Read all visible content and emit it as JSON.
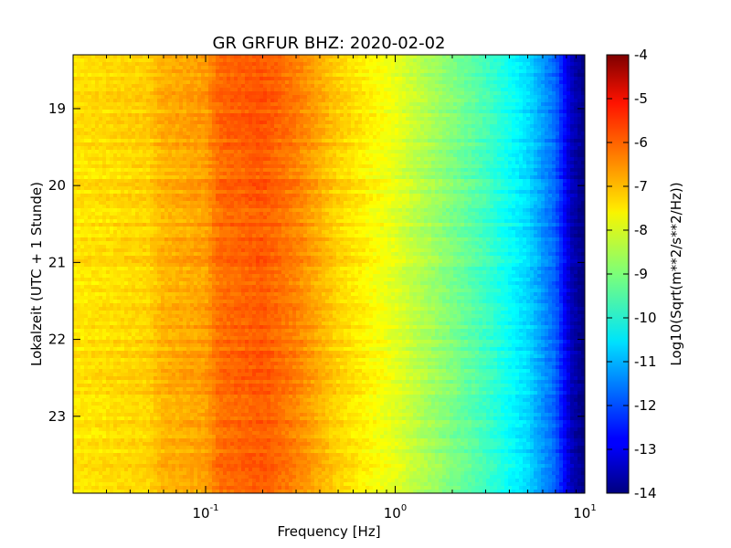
{
  "chart_data": {
    "type": "heatmap",
    "title": "GR GRFUR BHZ: 2020-02-02",
    "xlabel": "Frequency [Hz]",
    "ylabel": "Lokalzeit (UTC + 1 Stunde)",
    "x_scale": "log",
    "xlim": [
      0.02,
      10
    ],
    "x_ticks": [
      {
        "value": 0.1,
        "base": "10",
        "exp": "-1"
      },
      {
        "value": 1,
        "base": "10",
        "exp": "0"
      },
      {
        "value": 10,
        "base": "10",
        "exp": "1"
      }
    ],
    "ylim": [
      18.3,
      24.0
    ],
    "y_inverted": true,
    "y_ticks": [
      "19",
      "20",
      "21",
      "22",
      "23"
    ],
    "colormap": "jet",
    "colorbar": {
      "label": "Log10(Sqrt(m**2/s**2/Hz))",
      "min": -14,
      "max": -4,
      "ticks": [
        "-4",
        "-5",
        "-6",
        "-7",
        "-8",
        "-9",
        "-10",
        "-11",
        "-12",
        "-13",
        "-14"
      ]
    },
    "spectral_profile": {
      "frequency_hz": [
        0.02,
        0.05,
        0.058,
        0.1,
        0.118,
        0.2,
        0.3,
        0.5,
        1.0,
        1.3,
        2.0,
        3.0,
        5.0,
        7.0,
        8.5,
        10
      ],
      "level": [
        -7.5,
        -7.3,
        -7.0,
        -6.8,
        -6.3,
        -6.1,
        -6.5,
        -7.3,
        -8.0,
        -8.4,
        -9.0,
        -9.6,
        -10.6,
        -11.8,
        -13.4,
        -14
      ]
    }
  }
}
